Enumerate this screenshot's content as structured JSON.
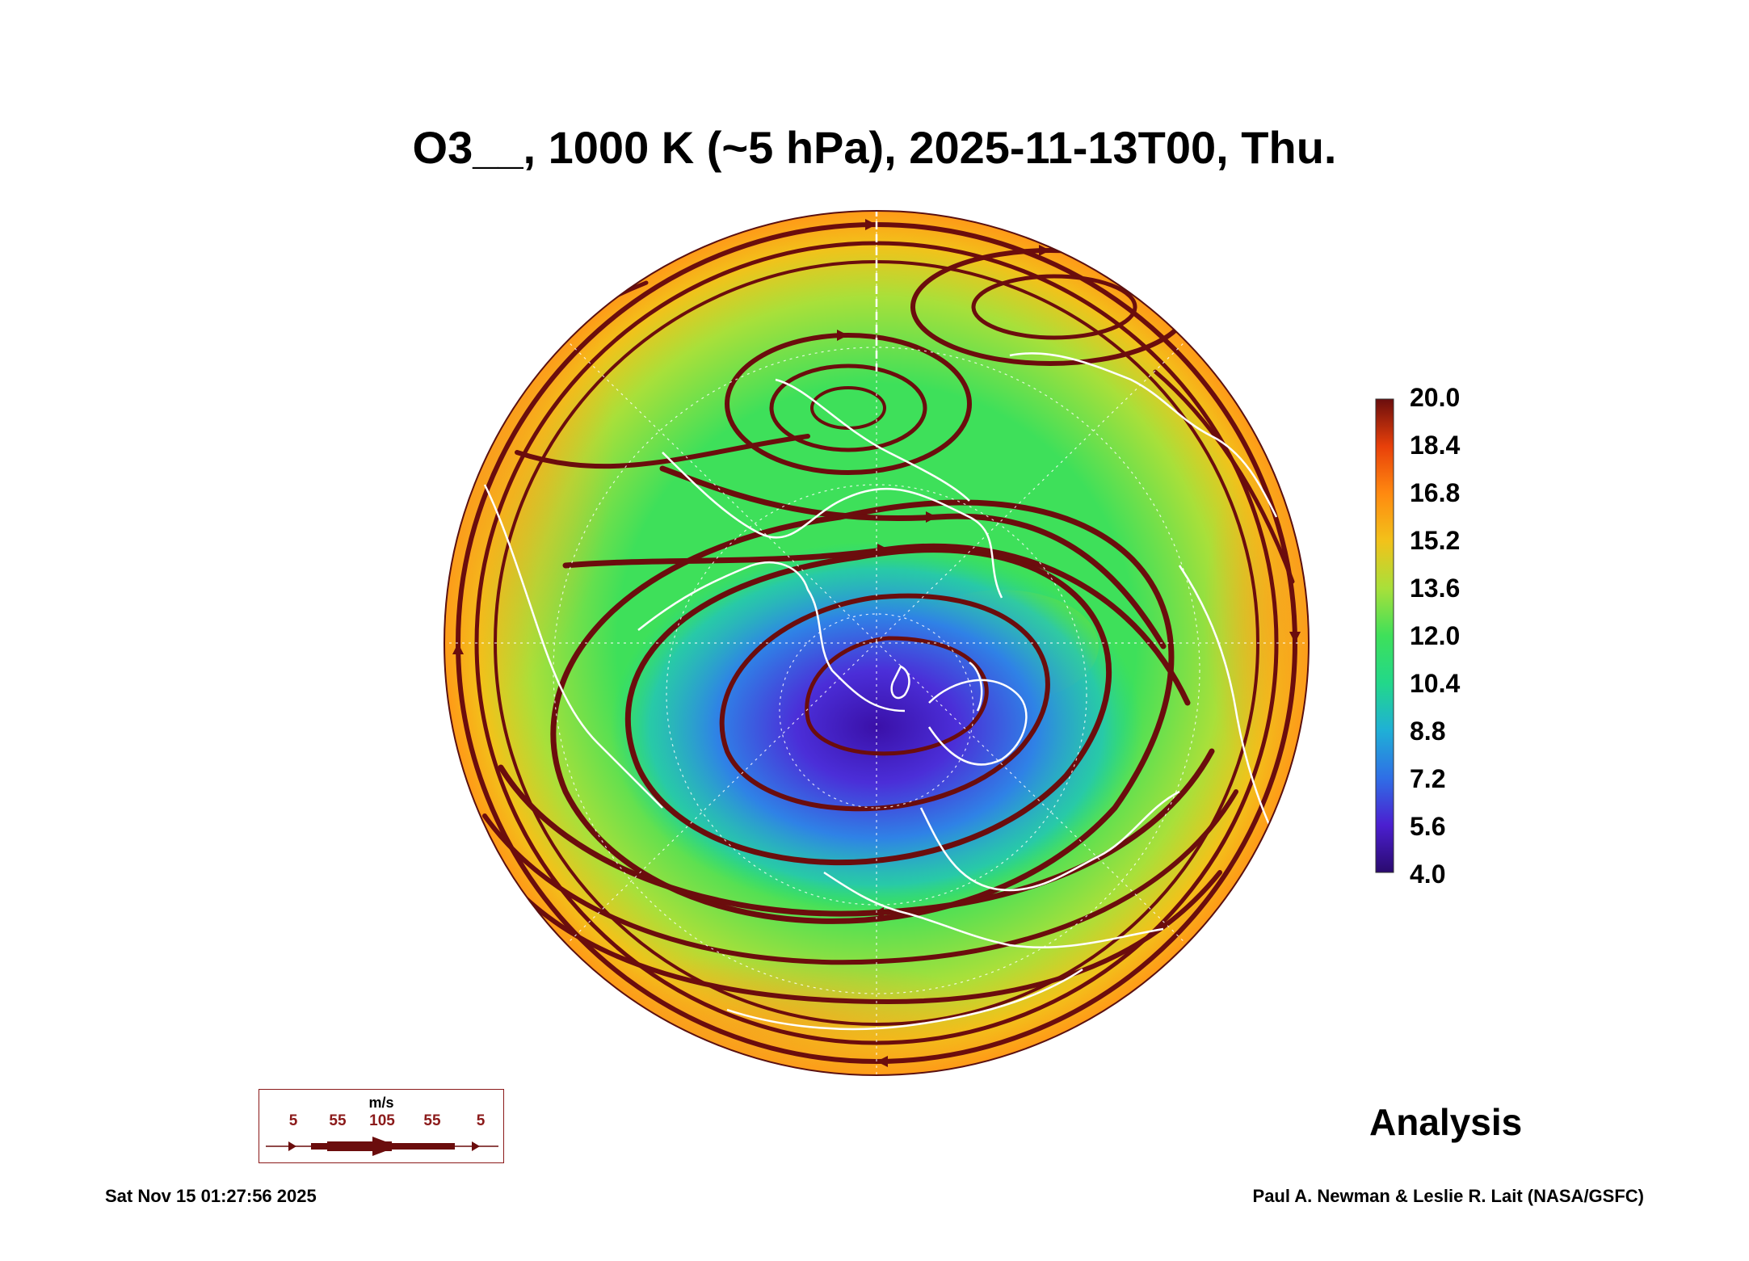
{
  "title": "O3__, 1000 K (~5 hPa), 2025-11-13T00, Thu.",
  "colorbar": {
    "labels": [
      "20.0",
      "18.4",
      "16.8",
      "15.2",
      "13.6",
      "12.0",
      "10.4",
      "8.8",
      "7.2",
      "5.6",
      "4.0"
    ],
    "min": 4.0,
    "max": 20.0,
    "colors": [
      "#2a0a6e",
      "#4b1fd0",
      "#2f6fe6",
      "#1fb0d6",
      "#22d88a",
      "#3ee05a",
      "#a8e03a",
      "#f2c21a",
      "#ff8a10",
      "#e8400a",
      "#6b0d0d"
    ]
  },
  "wind_legend": {
    "unit": "m/s",
    "ticks": [
      "5",
      "55",
      "105",
      "55",
      "5"
    ]
  },
  "label": "Analysis",
  "timestamp": "Sat Nov 15 01:27:56 2025",
  "credit": "Paul A. Newman & Leslie R. Lait (NASA/GSFC)"
}
